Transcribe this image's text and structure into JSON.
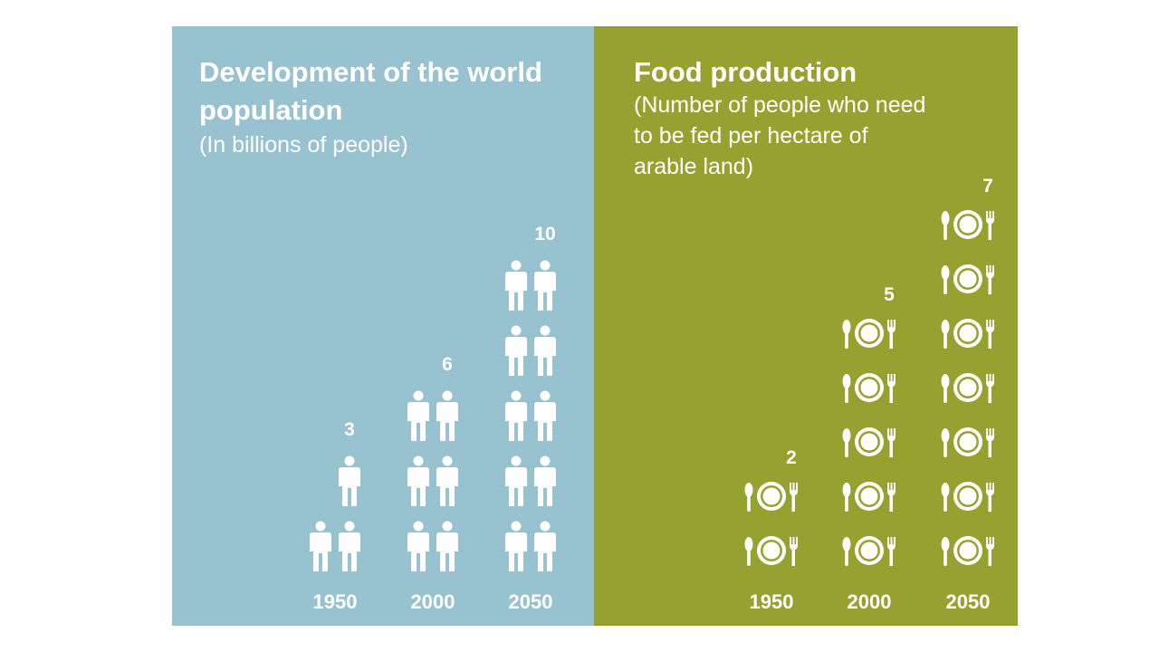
{
  "colors": {
    "population_bg": "#98c2cf",
    "food_bg": "#97a130",
    "icon": "#ffffff"
  },
  "icons": {
    "population_unit": "person-icon",
    "food_unit": "plate-cutlery-icon"
  },
  "population": {
    "title": "Development of the world population",
    "subtitle": "(In billions of people)"
  },
  "food": {
    "title": "Food production",
    "subtitle": "(Number of people who need to be fed per hectare of arable land)"
  },
  "chart_data": [
    {
      "type": "bar",
      "title": "Development of the world population",
      "subtitle": "(In billions of people)",
      "categories": [
        "1950",
        "2000",
        "2050"
      ],
      "values": [
        3,
        6,
        10
      ],
      "value_labels": [
        "3",
        "6",
        "10"
      ]
    },
    {
      "type": "bar",
      "title": "Food production",
      "subtitle": "(Number of people who need to be fed per hectare of arable land)",
      "categories": [
        "1950",
        "2000",
        "2050"
      ],
      "values": [
        2,
        5,
        7
      ],
      "value_labels": [
        "2",
        "5",
        "7"
      ]
    }
  ]
}
